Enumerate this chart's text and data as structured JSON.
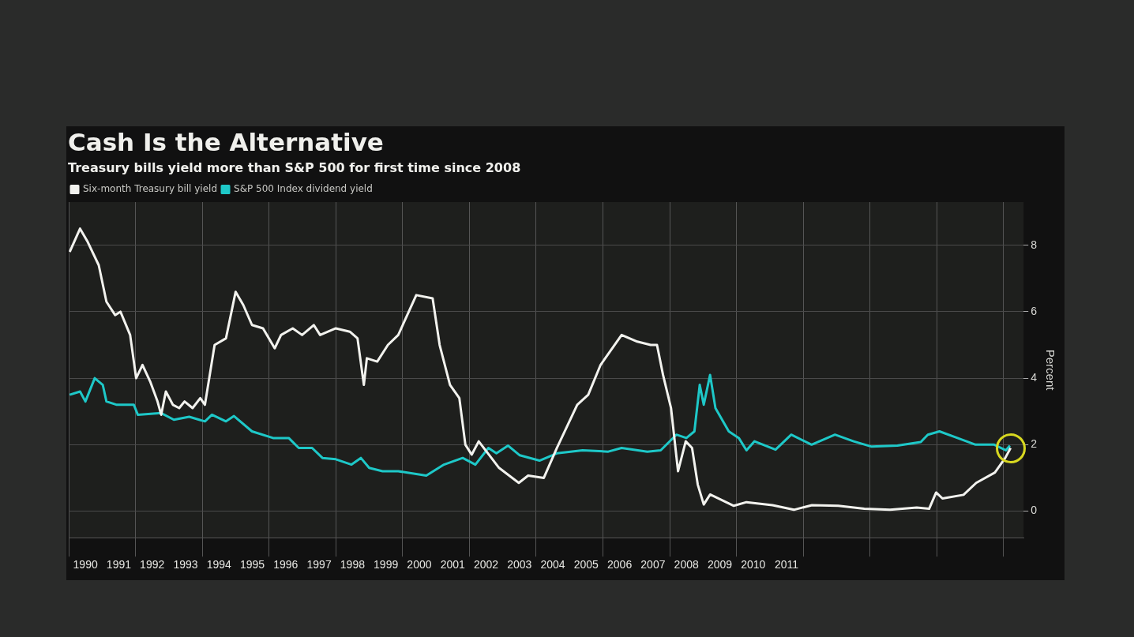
{
  "chart_data": {
    "type": "line",
    "title": "Cash Is the Alternative",
    "subtitle": "Treasury bills yield more than S&P 500 for first time since 2008",
    "ylabel": "Percent",
    "xlim": [
      1990,
      2018.6
    ],
    "xticks": [
      {
        "value": 1990,
        "label": null
      },
      {
        "value": 1990.5,
        "label": "1990"
      },
      {
        "value": 1991.5,
        "label": "1991"
      },
      {
        "value": 1992,
        "label": null
      },
      {
        "value": 1992.5,
        "label": "1992"
      },
      {
        "value": 1993.5,
        "label": "1993"
      },
      {
        "value": 1994,
        "label": null
      },
      {
        "value": 1994.5,
        "label": "1994"
      },
      {
        "value": 1995.5,
        "label": "1995"
      },
      {
        "value": 1996,
        "label": null
      },
      {
        "value": 1996.5,
        "label": "1996"
      },
      {
        "value": 1997.5,
        "label": "1997"
      },
      {
        "value": 1998,
        "label": null
      },
      {
        "value": 1998.5,
        "label": "1998"
      },
      {
        "value": 1999.5,
        "label": "1999"
      },
      {
        "value": 2000,
        "label": null
      },
      {
        "value": 2000.5,
        "label": "2000"
      },
      {
        "value": 2001.5,
        "label": "2001"
      },
      {
        "value": 2002,
        "label": null
      },
      {
        "value": 2002.5,
        "label": "2002"
      },
      {
        "value": 2003.5,
        "label": "2003"
      },
      {
        "value": 2004,
        "label": null
      },
      {
        "value": 2004.5,
        "label": "2004"
      },
      {
        "value": 2005.5,
        "label": "2005"
      },
      {
        "value": 2006,
        "label": null
      },
      {
        "value": 2006.5,
        "label": "2006"
      },
      {
        "value": 2007.5,
        "label": "2007"
      },
      {
        "value": 2008,
        "label": null
      },
      {
        "value": 2008.5,
        "label": "2008"
      },
      {
        "value": 2009.5,
        "label": "2009"
      },
      {
        "value": 2010,
        "label": null
      },
      {
        "value": 2010.5,
        "label": "2010"
      },
      {
        "value": 2011.5,
        "label": "2011"
      },
      {
        "value": 2012,
        "label": null
      },
      {
        "value": 2014,
        "label": null
      },
      {
        "value": 2016,
        "label": null
      },
      {
        "value": 2018,
        "label": null
      }
    ],
    "ylim": [
      -0.8,
      9.3
    ],
    "yticks": [
      0,
      2,
      4,
      6,
      8
    ],
    "grid": true,
    "legend": "top left",
    "marker": "none",
    "line_style": "solid",
    "series": [
      {
        "name": "Six-month Treasury bill yield",
        "color": "#f2f2ee",
        "x": [
          1990.03,
          1990.34,
          1990.57,
          1990.9,
          1991.13,
          1991.39,
          1991.55,
          1991.84,
          1992.02,
          1992.21,
          1992.44,
          1992.66,
          1992.77,
          1992.91,
          1993.12,
          1993.31,
          1993.47,
          1993.71,
          1993.94,
          1994.08,
          1994.37,
          1994.71,
          1995.0,
          1995.23,
          1995.49,
          1995.82,
          1996.17,
          1996.36,
          1996.71,
          1996.99,
          1997.34,
          1997.53,
          1998.0,
          1998.42,
          1998.65,
          1998.84,
          1998.93,
          1999.24,
          1999.56,
          1999.87,
          2000.41,
          2000.9,
          2001.11,
          2001.42,
          2001.7,
          2001.88,
          2002.07,
          2002.28,
          2002.66,
          2002.89,
          2003.48,
          2003.76,
          2004.23,
          2004.62,
          2005.23,
          2005.56,
          2005.93,
          2006.56,
          2007.03,
          2007.43,
          2007.62,
          2007.8,
          2008.04,
          2008.25,
          2008.48,
          2008.67,
          2008.84,
          2009.02,
          2009.21,
          2009.92,
          2010.3,
          2011.08,
          2011.72,
          2012.26,
          2013.05,
          2013.83,
          2014.6,
          2015.4,
          2015.77,
          2015.98,
          2016.17,
          2016.8,
          2017.18,
          2017.74,
          2018.05,
          2018.21
        ],
        "values": [
          7.8,
          8.5,
          8.1,
          7.4,
          6.3,
          5.9,
          6.0,
          5.3,
          4.0,
          4.4,
          3.9,
          3.3,
          2.9,
          3.6,
          3.2,
          3.1,
          3.3,
          3.1,
          3.4,
          3.2,
          5.0,
          5.2,
          6.6,
          6.2,
          5.6,
          5.5,
          4.9,
          5.3,
          5.5,
          5.3,
          5.6,
          5.3,
          5.5,
          5.4,
          5.2,
          3.8,
          4.6,
          4.5,
          5.0,
          5.3,
          6.5,
          6.4,
          5.0,
          3.8,
          3.4,
          2.0,
          1.7,
          2.1,
          1.6,
          1.3,
          0.85,
          1.07,
          1.0,
          1.9,
          3.2,
          3.5,
          4.4,
          5.3,
          5.1,
          5.0,
          5.0,
          4.1,
          3.1,
          1.2,
          2.1,
          1.9,
          0.8,
          0.2,
          0.5,
          0.16,
          0.27,
          0.18,
          0.04,
          0.18,
          0.16,
          0.07,
          0.04,
          0.11,
          0.07,
          0.56,
          0.38,
          0.49,
          0.85,
          1.16,
          1.6,
          1.9
        ]
      },
      {
        "name": "S&P 500 Index dividend yield",
        "color": "#1ec8c8",
        "x": [
          1990.03,
          1990.34,
          1990.5,
          1990.78,
          1991.02,
          1991.13,
          1991.44,
          1991.95,
          1992.07,
          1992.77,
          1993.15,
          1993.61,
          1994.08,
          1994.29,
          1994.71,
          1994.95,
          1995.49,
          1996.12,
          1996.59,
          1996.89,
          1997.29,
          1997.6,
          1998.0,
          1998.47,
          1998.75,
          1999.0,
          1999.4,
          1999.87,
          2000.71,
          2001.24,
          2001.8,
          2002.18,
          2002.57,
          2002.81,
          2003.16,
          2003.51,
          2004.1,
          2004.62,
          2005.39,
          2006.16,
          2006.56,
          2007.33,
          2007.73,
          2008.2,
          2008.5,
          2008.74,
          2008.9,
          2009.02,
          2009.21,
          2009.37,
          2009.77,
          2010.07,
          2010.3,
          2010.54,
          2011.17,
          2011.64,
          2012.25,
          2012.95,
          2013.51,
          2014.05,
          2014.82,
          2015.52,
          2015.73,
          2016.08,
          2016.62,
          2017.16,
          2017.72,
          2018.07,
          2018.19
        ],
        "values": [
          3.5,
          3.6,
          3.3,
          4.0,
          3.8,
          3.3,
          3.2,
          3.2,
          2.9,
          2.95,
          2.75,
          2.84,
          2.7,
          2.9,
          2.7,
          2.86,
          2.4,
          2.2,
          2.2,
          1.9,
          1.9,
          1.6,
          1.56,
          1.4,
          1.6,
          1.3,
          1.2,
          1.2,
          1.07,
          1.4,
          1.6,
          1.4,
          1.9,
          1.74,
          1.97,
          1.68,
          1.52,
          1.74,
          1.83,
          1.79,
          1.9,
          1.79,
          1.83,
          2.3,
          2.2,
          2.4,
          3.8,
          3.2,
          4.1,
          3.1,
          2.4,
          2.2,
          1.83,
          2.1,
          1.85,
          2.3,
          2.0,
          2.3,
          2.1,
          1.94,
          1.97,
          2.08,
          2.3,
          2.4,
          2.2,
          2.0,
          2.0,
          1.83,
          1.97
        ]
      }
    ]
  }
}
